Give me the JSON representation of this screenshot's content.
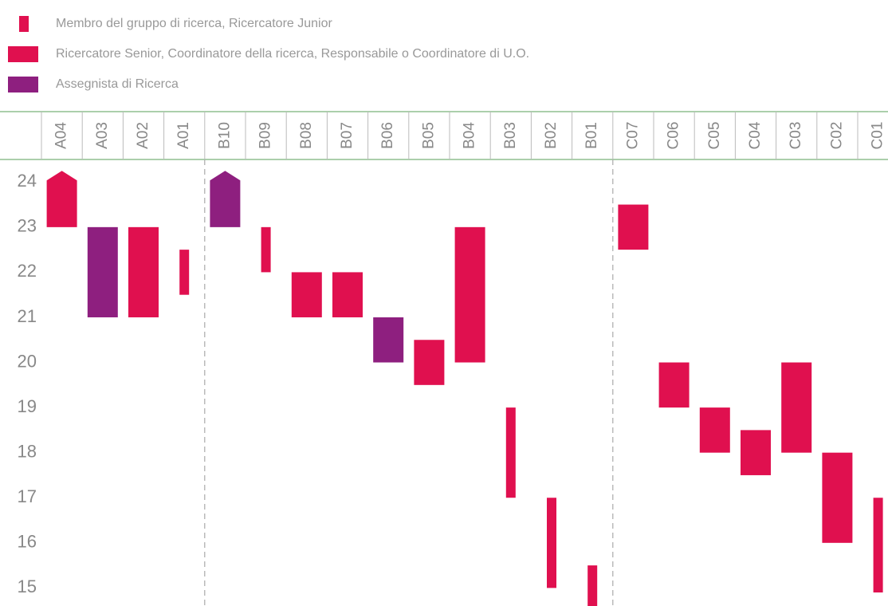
{
  "chart_data": {
    "type": "range_bar",
    "categories": [
      "A04",
      "A03",
      "A02",
      "A01",
      "B10",
      "B09",
      "B08",
      "B07",
      "B06",
      "B05",
      "B04",
      "B03",
      "B02",
      "B01",
      "C07",
      "C06",
      "C05",
      "C04",
      "C03",
      "C02",
      "C01"
    ],
    "series": [
      {
        "name": "Membro del gruppo di ricerca, Ricercatore Junior",
        "color": "#e0104f",
        "bar_width": "narrow",
        "values": [
          null,
          null,
          null,
          [
            21.5,
            22.5
          ],
          null,
          [
            22,
            23
          ],
          null,
          null,
          null,
          null,
          null,
          [
            17,
            19
          ],
          [
            15,
            17
          ],
          [
            14.5,
            15.5
          ],
          null,
          null,
          null,
          null,
          null,
          null,
          [
            14.9,
            17
          ]
        ]
      },
      {
        "name": "Ricercatore Senior, Coordinatore della ricerca, Responsabile o Coordinatore di U.O.",
        "color": "#e0104f",
        "bar_width": "wide",
        "values": [
          [
            23,
            24
          ],
          null,
          [
            21,
            23
          ],
          null,
          null,
          null,
          [
            21,
            22
          ],
          [
            21,
            22
          ],
          null,
          [
            19.5,
            20.5
          ],
          [
            20,
            23
          ],
          null,
          null,
          null,
          [
            22.5,
            23.5
          ],
          [
            19,
            20
          ],
          [
            18,
            19
          ],
          [
            17.5,
            18.5
          ],
          [
            18,
            20
          ],
          [
            16,
            18
          ],
          null
        ]
      },
      {
        "name": "Assegnista di Ricerca",
        "color": "#8e1f7f",
        "bar_width": "wide",
        "values": [
          null,
          [
            21,
            23
          ],
          null,
          null,
          [
            23,
            24
          ],
          null,
          null,
          null,
          [
            20,
            21
          ],
          null,
          null,
          null,
          null,
          null,
          null,
          null,
          null,
          null,
          null,
          null,
          null
        ]
      }
    ],
    "open_top": [
      true,
      false,
      false,
      false,
      true,
      false,
      false,
      false,
      false,
      false,
      false,
      false,
      false,
      false,
      false,
      false,
      false,
      false,
      false,
      false,
      false
    ],
    "ylim": [
      14.6,
      24.5
    ],
    "yticks": [
      15,
      16,
      17,
      18,
      19,
      20,
      21,
      22,
      23,
      24
    ]
  }
}
